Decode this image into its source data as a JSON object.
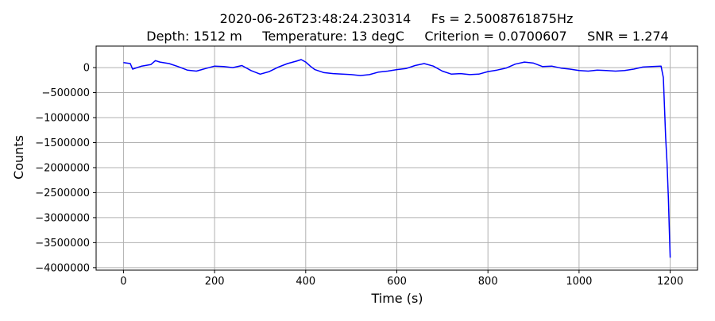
{
  "chart_data": {
    "type": "line",
    "title_line1": "2020-06-26T23:48:24.230314     Fs = 2.5008761875Hz",
    "title_line2": "Depth: 1512 m     Temperature: 13 degC     Criterion = 0.0700607     SNR = 1.274",
    "xlabel": "Time (s)",
    "ylabel": "Counts",
    "xlim": [
      -60,
      1260
    ],
    "ylim": [
      -4050000,
      430000
    ],
    "x_ticks": [
      0,
      200,
      400,
      600,
      800,
      1000,
      1200
    ],
    "x_tick_labels": [
      "0",
      "200",
      "400",
      "600",
      "800",
      "1000",
      "1200"
    ],
    "y_ticks": [
      0,
      -500000,
      -1000000,
      -1500000,
      -2000000,
      -2500000,
      -3000000,
      -3500000,
      -4000000
    ],
    "y_tick_labels": [
      "0",
      "−500000",
      "−1000000",
      "−1500000",
      "−2000000",
      "−2500000",
      "−3000000",
      "−3500000",
      "−4000000"
    ],
    "grid": true,
    "line_color": "#0000ff",
    "series": [
      {
        "x": [
          0,
          15,
          20,
          40,
          60,
          70,
          80,
          100,
          120,
          140,
          160,
          180,
          200,
          220,
          240,
          260,
          280,
          300,
          320,
          340,
          360,
          380,
          390,
          400,
          410,
          420,
          440,
          460,
          480,
          500,
          520,
          540,
          560,
          580,
          600,
          620,
          640,
          660,
          680,
          700,
          720,
          740,
          760,
          780,
          800,
          820,
          840,
          860,
          880,
          900,
          920,
          940,
          960,
          980,
          1000,
          1020,
          1040,
          1060,
          1080,
          1100,
          1120,
          1140,
          1160,
          1180,
          1185,
          1190,
          1193,
          1196,
          1198,
          1200
        ],
        "y": [
          100000,
          80000,
          -30000,
          30000,
          60000,
          140000,
          110000,
          80000,
          20000,
          -50000,
          -70000,
          -20000,
          30000,
          20000,
          0,
          40000,
          -60000,
          -130000,
          -80000,
          10000,
          80000,
          130000,
          160000,
          110000,
          30000,
          -40000,
          -100000,
          -120000,
          -130000,
          -140000,
          -160000,
          -140000,
          -90000,
          -70000,
          -40000,
          -20000,
          40000,
          80000,
          30000,
          -70000,
          -130000,
          -120000,
          -140000,
          -130000,
          -80000,
          -50000,
          -10000,
          70000,
          110000,
          90000,
          20000,
          30000,
          -10000,
          -30000,
          -60000,
          -70000,
          -50000,
          -60000,
          -70000,
          -60000,
          -30000,
          10000,
          20000,
          30000,
          -200000,
          -1400000,
          -1900000,
          -2600000,
          -3200000,
          -3800000
        ]
      }
    ]
  }
}
